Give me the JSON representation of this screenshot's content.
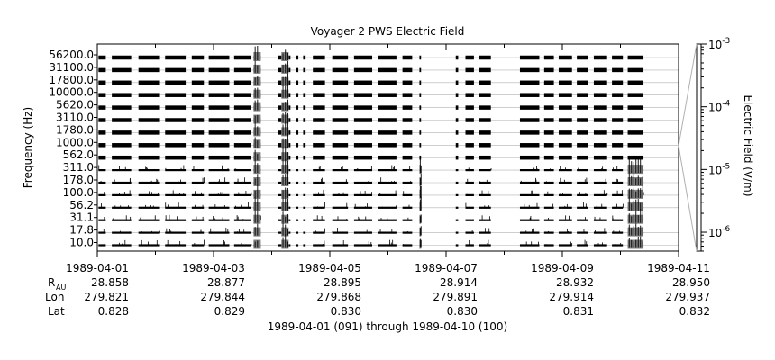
{
  "chart_data": {
    "type": "heatmap",
    "title": "Voyager 2 PWS Electric Field",
    "ylabel": "Frequency (Hz)",
    "colorbar_label": "Electric Field (V/m)",
    "colorbar_scale": "log",
    "colorbar_range": [
      5e-07,
      0.001
    ],
    "colorbar_ticks": [
      {
        "mantissa": "10",
        "exponent": "-3",
        "value": 0.001
      },
      {
        "mantissa": "10",
        "exponent": "-4",
        "value": 0.0001
      },
      {
        "mantissa": "10",
        "exponent": "-5",
        "value": 1e-05
      },
      {
        "mantissa": "10",
        "exponent": "-6",
        "value": 1e-06
      }
    ],
    "frequency_channels_hz": [
      "56200.0",
      "31100.0",
      "17800.0",
      "10000.0",
      "5620.0",
      "3110.0",
      "1780.0",
      "1000.0",
      "562.0",
      "311.0",
      "178.0",
      "100.0",
      "56.2",
      "31.1",
      "17.8",
      "10.0"
    ],
    "x_start": "1989-04-01",
    "x_end": "1989-04-11",
    "x_ticks": [
      {
        "date": "1989-04-01",
        "r_au": "28.858",
        "lon": "279.821",
        "lat": "0.828"
      },
      {
        "date": "1989-04-03",
        "r_au": "28.877",
        "lon": "279.844",
        "lat": "0.829"
      },
      {
        "date": "1989-04-05",
        "r_au": "28.895",
        "lon": "279.868",
        "lat": "0.830"
      },
      {
        "date": "1989-04-07",
        "r_au": "28.914",
        "lon": "279.891",
        "lat": "0.830"
      },
      {
        "date": "1989-04-09",
        "r_au": "28.932",
        "lon": "279.914",
        "lat": "0.831"
      },
      {
        "date": "1989-04-11",
        "r_au": "28.950",
        "lon": "279.937",
        "lat": "0.832"
      }
    ],
    "ephemeris_labels": {
      "r_main": "R",
      "r_sub": "AU",
      "lon": "Lon",
      "lat": "Lat"
    },
    "footer": "1989-04-01 (091) through 1989-04-10 (100)",
    "data_segments": [
      [
        "1989-04-01T00:30",
        "1989-04-01T03:30"
      ],
      [
        "1989-04-01T06:00",
        "1989-04-01T14:00"
      ],
      [
        "1989-04-01T17:00",
        "1989-04-02T01:30"
      ],
      [
        "1989-04-02T04:00",
        "1989-04-02T12:30"
      ],
      [
        "1989-04-02T15:00",
        "1989-04-02T20:00"
      ],
      [
        "1989-04-02T22:00",
        "1989-04-03T06:30"
      ],
      [
        "1989-04-03T08:30",
        "1989-04-03T15:30"
      ],
      [
        "1989-04-03T16:30",
        "1989-04-03T19:30"
      ],
      [
        "1989-04-04T02:30",
        "1989-04-04T04:30"
      ],
      [
        "1989-04-04T07:00",
        "1989-04-04T07:45"
      ],
      [
        "1989-04-04T10:00",
        "1989-04-04T11:00"
      ],
      [
        "1989-04-04T13:00",
        "1989-04-04T14:00"
      ],
      [
        "1989-04-04T17:00",
        "1989-04-04T22:00"
      ],
      [
        "1989-04-05T01:00",
        "1989-04-05T07:30"
      ],
      [
        "1989-04-05T10:00",
        "1989-04-05T17:30"
      ],
      [
        "1989-04-05T20:00",
        "1989-04-06T03:30"
      ],
      [
        "1989-04-06T06:00",
        "1989-04-06T10:00"
      ],
      [
        "1989-04-06T13:00",
        "1989-04-06T13:40"
      ],
      [
        "1989-04-07T04:00",
        "1989-04-07T05:00"
      ],
      [
        "1989-04-07T08:00",
        "1989-04-07T11:30"
      ],
      [
        "1989-04-07T13:30",
        "1989-04-07T18:30"
      ],
      [
        "1989-04-08T06:30",
        "1989-04-08T14:30"
      ],
      [
        "1989-04-08T16:30",
        "1989-04-08T20:30"
      ],
      [
        "1989-04-08T22:30",
        "1989-04-09T04:00"
      ],
      [
        "1989-04-09T06:00",
        "1989-04-09T10:30"
      ],
      [
        "1989-04-09T13:00",
        "1989-04-09T18:30"
      ],
      [
        "1989-04-09T20:30",
        "1989-04-10T01:00"
      ],
      [
        "1989-04-10T03:00",
        "1989-04-10T09:30"
      ]
    ],
    "events": [
      {
        "start": "1989-04-03T16:30",
        "end": "1989-04-03T19:30",
        "channels": "all",
        "level": "high"
      },
      {
        "start": "1989-04-04T04:00",
        "end": "1989-04-04T07:00",
        "channels": "all",
        "level": "high"
      },
      {
        "start": "1989-04-10T03:00",
        "end": "1989-04-10T09:30",
        "channels": "low",
        "level": "high"
      },
      {
        "start": "1989-04-06T13:00",
        "end": "1989-04-06T13:40",
        "channels": "low",
        "level": "high"
      }
    ],
    "colors": {
      "data": "#000000",
      "enhanced": "#808080",
      "grid": "#b0b0b0",
      "frame": "#000000"
    }
  }
}
